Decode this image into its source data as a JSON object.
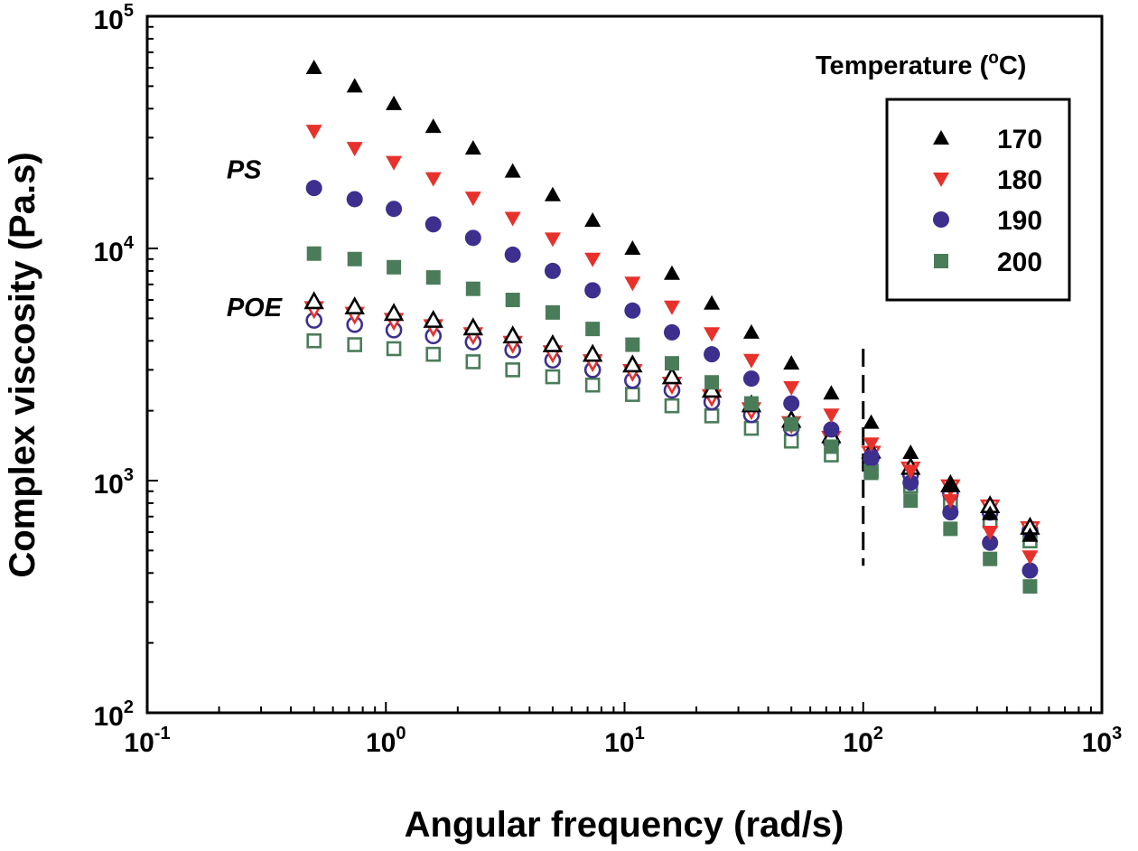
{
  "chart_data": {
    "type": "scatter",
    "xlabel": "Angular frequency (rad/s)",
    "ylabel": "Complex viscosity (Pa.s)",
    "x_scale": "log",
    "y_scale": "log",
    "xlim": [
      0.1,
      1000
    ],
    "ylim": [
      100,
      100000
    ],
    "x_ticks": [
      {
        "base": "10",
        "exp": "-1",
        "value": 0.1
      },
      {
        "base": "10",
        "exp": "0",
        "value": 1
      },
      {
        "base": "10",
        "exp": "1",
        "value": 10
      },
      {
        "base": "10",
        "exp": "2",
        "value": 100
      },
      {
        "base": "10",
        "exp": "3",
        "value": 1000
      }
    ],
    "y_ticks": [
      {
        "base": "10",
        "exp": "2",
        "value": 100
      },
      {
        "base": "10",
        "exp": "3",
        "value": 1000
      },
      {
        "base": "10",
        "exp": "4",
        "value": 10000
      },
      {
        "base": "10",
        "exp": "5",
        "value": 100000
      }
    ],
    "legend": {
      "title_main": "Temperature (",
      "title_deg": "o",
      "title_end": "C)",
      "placement": "top-right"
    },
    "annotations": [
      {
        "text": "PS",
        "x": 0.215,
        "y": 20000
      },
      {
        "text": "POE",
        "x": 0.215,
        "y": 5100
      }
    ],
    "vline": {
      "x": 100,
      "ymin": 430,
      "ymax": 3700,
      "style": "dashed"
    },
    "x": [
      0.5,
      0.74,
      1.08,
      1.58,
      2.32,
      3.4,
      5.0,
      7.35,
      10.8,
      15.8,
      23.2,
      34.0,
      50.0,
      73.5,
      108,
      158,
      232,
      340,
      500
    ],
    "series": [
      {
        "name": "170",
        "group": "PS",
        "marker": "triangle-up",
        "color": "#000000",
        "filled": true,
        "values": [
          60000,
          50000,
          42000,
          33500,
          27000,
          21500,
          17000,
          13200,
          10000,
          7800,
          5800,
          4350,
          3200,
          2380,
          1780,
          1320,
          960,
          720,
          580
        ]
      },
      {
        "name": "180",
        "group": "PS",
        "marker": "triangle-down",
        "color": "#e8312b",
        "filled": true,
        "values": [
          32000,
          27000,
          23500,
          20000,
          16500,
          13500,
          11000,
          9000,
          7100,
          5600,
          4300,
          3300,
          2520,
          1920,
          1440,
          1100,
          820,
          600,
          470
        ]
      },
      {
        "name": "190",
        "group": "PS",
        "marker": "circle",
        "color": "#3d2f8e",
        "filled": true,
        "values": [
          18200,
          16300,
          14800,
          12700,
          11100,
          9400,
          8000,
          6600,
          5400,
          4350,
          3500,
          2750,
          2150,
          1660,
          1270,
          980,
          730,
          540,
          410
        ]
      },
      {
        "name": "200",
        "group": "PS",
        "marker": "square",
        "color": "#4a7c59",
        "filled": true,
        "values": [
          9500,
          9000,
          8300,
          7500,
          6700,
          6000,
          5300,
          4500,
          3850,
          3200,
          2650,
          2150,
          1750,
          1400,
          1080,
          820,
          620,
          460,
          350
        ]
      },
      {
        "name": "170",
        "group": "POE",
        "marker": "triangle-up",
        "color": "#000000",
        "filled": false,
        "values": [
          5900,
          5600,
          5250,
          4900,
          4550,
          4200,
          3850,
          3500,
          3150,
          2800,
          2450,
          2120,
          1820,
          1560,
          1340,
          1140,
          960,
          780,
          630
        ]
      },
      {
        "name": "180",
        "group": "POE",
        "marker": "triangle-down",
        "color": "#e8312b",
        "filled": false,
        "values": [
          5500,
          5200,
          4900,
          4600,
          4250,
          3900,
          3550,
          3250,
          2950,
          2600,
          2300,
          2020,
          1760,
          1520,
          1310,
          1120,
          940,
          770,
          620
        ]
      },
      {
        "name": "190",
        "group": "POE",
        "marker": "circle",
        "color": "#3d2f8e",
        "filled": false,
        "values": [
          4900,
          4700,
          4450,
          4200,
          3950,
          3650,
          3300,
          3000,
          2700,
          2450,
          2180,
          1920,
          1680,
          1460,
          1250,
          1060,
          880,
          730,
          610
        ]
      },
      {
        "name": "200",
        "group": "POE",
        "marker": "square",
        "color": "#4a7c59",
        "filled": false,
        "values": [
          4000,
          3850,
          3700,
          3500,
          3250,
          3000,
          2800,
          2580,
          2350,
          2100,
          1900,
          1680,
          1480,
          1290,
          1100,
          950,
          810,
          670,
          550
        ]
      }
    ]
  }
}
